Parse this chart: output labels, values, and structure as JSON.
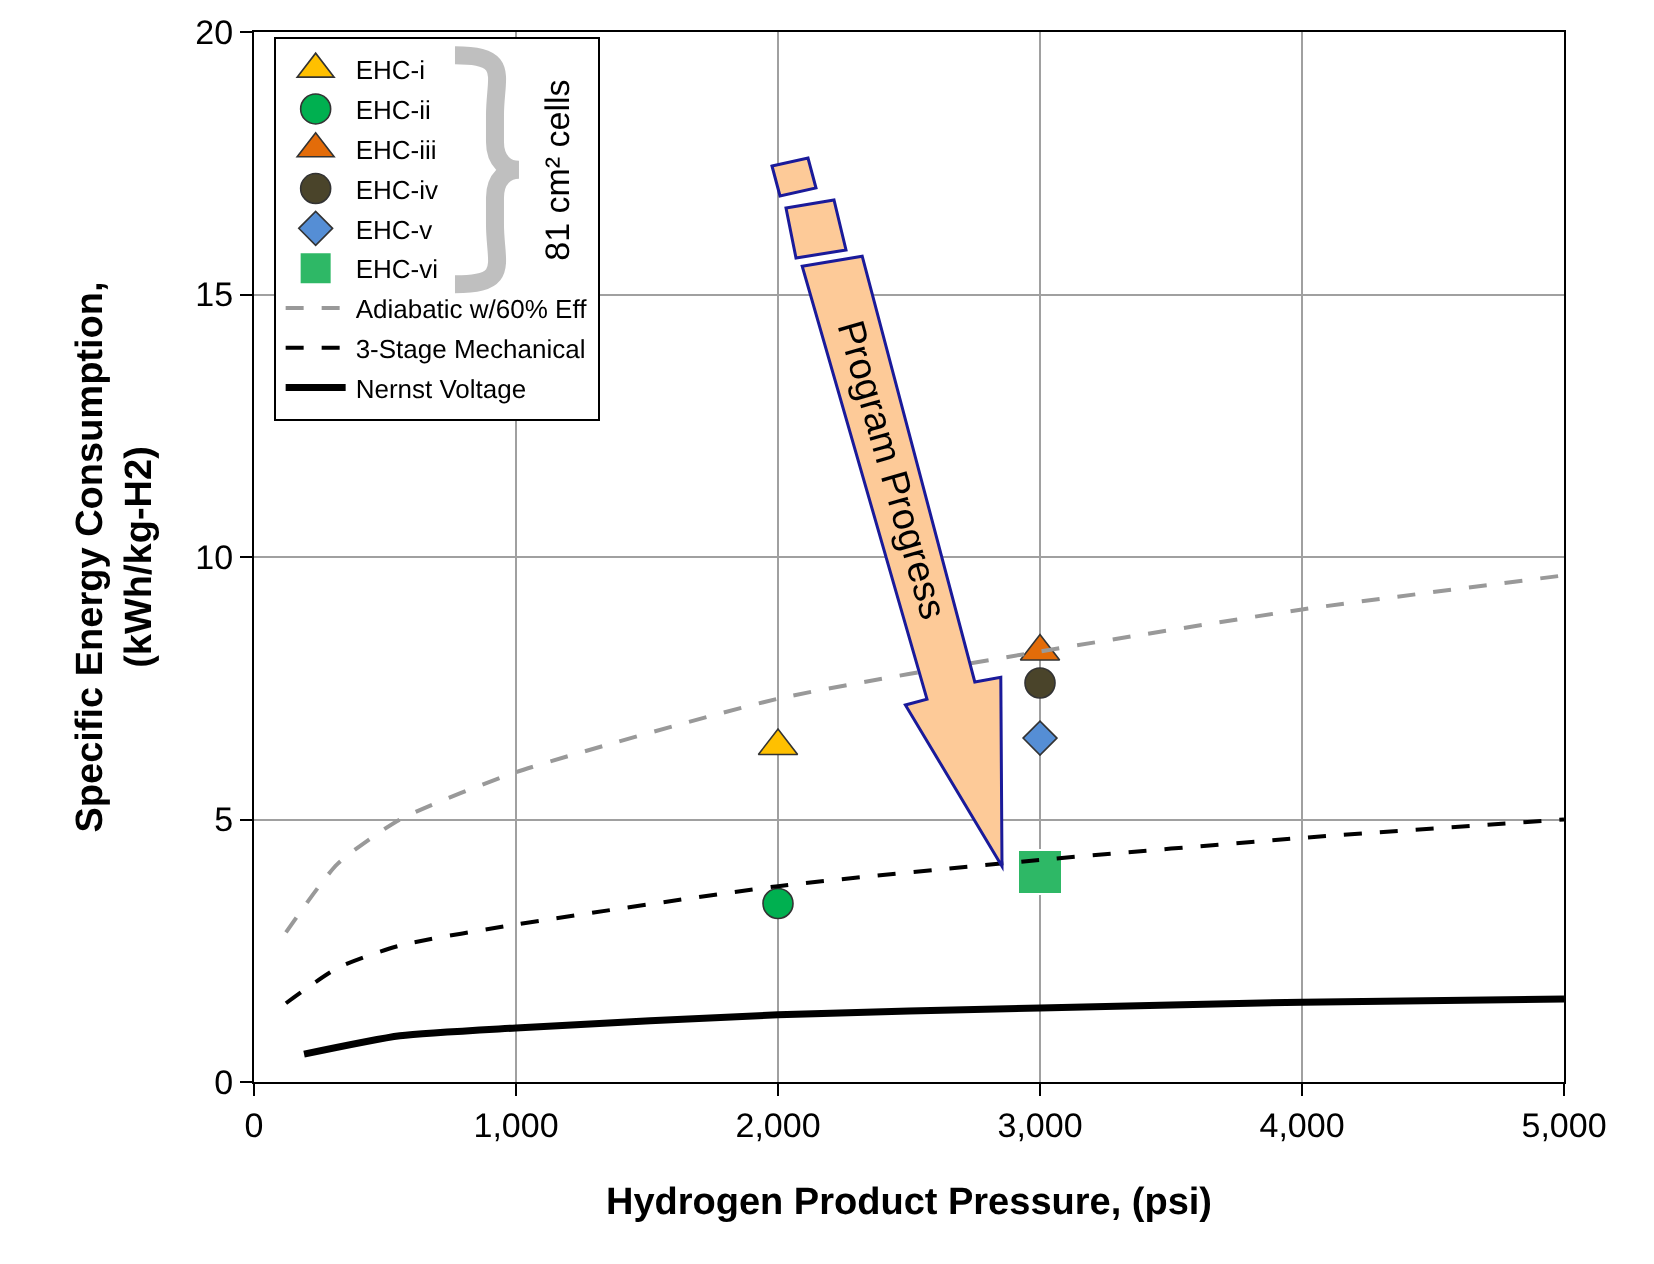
{
  "chart_data": {
    "type": "scatter",
    "xlabel": "Hydrogen Product Pressure, (psi)",
    "ylabel": "Specific Energy Consumption,\n(kWh/kg-H2)",
    "xlim": [
      0,
      5000
    ],
    "ylim": [
      0,
      20
    ],
    "xticks": [
      0,
      {
        "value": 1000,
        "label": "1,000"
      },
      {
        "value": 2000,
        "label": "2,000"
      },
      {
        "value": 3000,
        "label": "3,000"
      },
      {
        "value": 4000,
        "label": "4,000"
      },
      {
        "value": 5000,
        "label": "5,000"
      }
    ],
    "yticks": [
      0,
      5,
      10,
      15,
      20
    ],
    "grid": true,
    "legend": "top left",
    "annotations": [
      "81 cm² cells",
      "Program Progress"
    ],
    "series": [
      {
        "name": "EHC-i",
        "marker": "triangle",
        "color": "#ffc000",
        "x": [
          2000
        ],
        "values": [
          6.4
        ]
      },
      {
        "name": "EHC-ii",
        "marker": "circle",
        "color": "#00b050",
        "x": [
          2000
        ],
        "values": [
          3.4
        ]
      },
      {
        "name": "EHC-iii",
        "marker": "triangle",
        "color": "#e36c09",
        "x": [
          3000
        ],
        "values": [
          8.2
        ]
      },
      {
        "name": "EHC-iv",
        "marker": "circle",
        "color": "#4a442a",
        "x": [
          3000
        ],
        "values": [
          7.6
        ]
      },
      {
        "name": "EHC-v",
        "marker": "diamond",
        "color": "#558ed5",
        "x": [
          3000
        ],
        "values": [
          6.55
        ]
      },
      {
        "name": "EHC-vi",
        "marker": "square",
        "color": "#2eb866",
        "x": [
          3000
        ],
        "values": [
          4.0
        ]
      },
      {
        "name": "Adiabatic w/60% Eff",
        "type": "line",
        "color": "#999999",
        "line_style": "dashed",
        "x": [
          122,
          318,
          557,
          1000,
          2000,
          3000,
          4000,
          5000
        ],
        "values": [
          2.85,
          4.15,
          5.0,
          5.9,
          7.3,
          8.2,
          9.0,
          9.65
        ]
      },
      {
        "name": "3-Stage Mechanical",
        "type": "line",
        "color": "#000000",
        "line_style": "dashed",
        "x": [
          122,
          318,
          557,
          1000,
          2000,
          3000,
          4000,
          5000
        ],
        "values": [
          1.5,
          2.17,
          2.6,
          3.0,
          3.73,
          4.23,
          4.65,
          5.0
        ]
      },
      {
        "name": "Nernst Voltage",
        "type": "line",
        "color": "#000000",
        "line_style": "solid",
        "x": [
          191,
          557,
          1000,
          2000,
          3000,
          4000,
          5000
        ],
        "values": [
          0.53,
          0.88,
          1.03,
          1.28,
          1.41,
          1.52,
          1.58
        ]
      }
    ]
  }
}
